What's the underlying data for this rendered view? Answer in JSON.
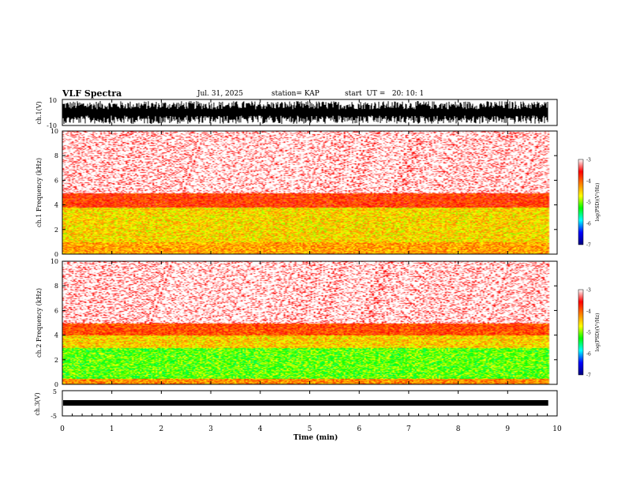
{
  "header": {
    "title": "VLF Spectra",
    "date": "Jul. 31, 2025",
    "station": "station= KAP",
    "start": "start  UT =   20: 10: 1"
  },
  "chart_data": [
    {
      "type": "line",
      "id": "ch1-waveform",
      "ylabel": "ch.1(V)",
      "ylim": [
        -10,
        10
      ],
      "tick_labels": [
        "10",
        "-10"
      ],
      "description_values": {
        "amplitude_range": [
          -10,
          10
        ]
      }
    },
    {
      "type": "heatmap",
      "id": "ch1-spectrogram",
      "ylabel": "ch.1 Frequency  (kHz)",
      "ylim": [
        0,
        10
      ],
      "yticks": [
        "0",
        "2",
        "4",
        "6",
        "8",
        "10"
      ],
      "colorbar": {
        "label": "log(PSD)(V²/Hz)",
        "ticks": [
          "-3",
          "-4",
          "-5",
          "-6",
          "-7"
        ],
        "range": [
          -7,
          -3
        ]
      },
      "bands": [
        {
          "from_khz": 0,
          "to_khz": 1,
          "level": -4.3
        },
        {
          "from_khz": 1,
          "to_khz": 3.8,
          "level": -4.55
        },
        {
          "from_khz": 3.8,
          "to_khz": 5,
          "level": -3.8
        },
        {
          "from_khz": 5,
          "to_khz": 10,
          "level": -3.2
        }
      ]
    },
    {
      "type": "heatmap",
      "id": "ch2-spectrogram",
      "ylabel": "ch.2 Frequency  (kHz)",
      "ylim": [
        0,
        10
      ],
      "yticks": [
        "0",
        "2",
        "4",
        "6",
        "8",
        "10"
      ],
      "colorbar": {
        "label": "log(PSD)(V²/Hz)",
        "ticks": [
          "-3",
          "-4",
          "-5",
          "-6",
          "-7"
        ],
        "range": [
          -7,
          -3
        ]
      },
      "bands": [
        {
          "from_khz": 0,
          "to_khz": 0.5,
          "level": -4.2
        },
        {
          "from_khz": 0.5,
          "to_khz": 3,
          "level": -5.1
        },
        {
          "from_khz": 3,
          "to_khz": 4,
          "level": -4.5
        },
        {
          "from_khz": 4,
          "to_khz": 5,
          "level": -3.9
        },
        {
          "from_khz": 5,
          "to_khz": 10,
          "level": -3.2
        }
      ]
    },
    {
      "type": "line",
      "id": "ch3-waveform",
      "ylabel": "ch.3(V)",
      "ylim": [
        -5,
        5
      ],
      "tick_labels": [
        "5",
        "-5"
      ]
    }
  ],
  "xaxis": {
    "label": "Time  (min)",
    "xlim": [
      0,
      10
    ],
    "ticks": [
      "0",
      "1",
      "2",
      "3",
      "4",
      "5",
      "6",
      "7",
      "8",
      "9",
      "10"
    ],
    "data_end": 9.82
  },
  "colors": {
    "scale": [
      "#00007f",
      "#0000ff",
      "#00ffff",
      "#00ff00",
      "#ffff00",
      "#ff8000",
      "#ff0000",
      "#ffffff"
    ]
  }
}
